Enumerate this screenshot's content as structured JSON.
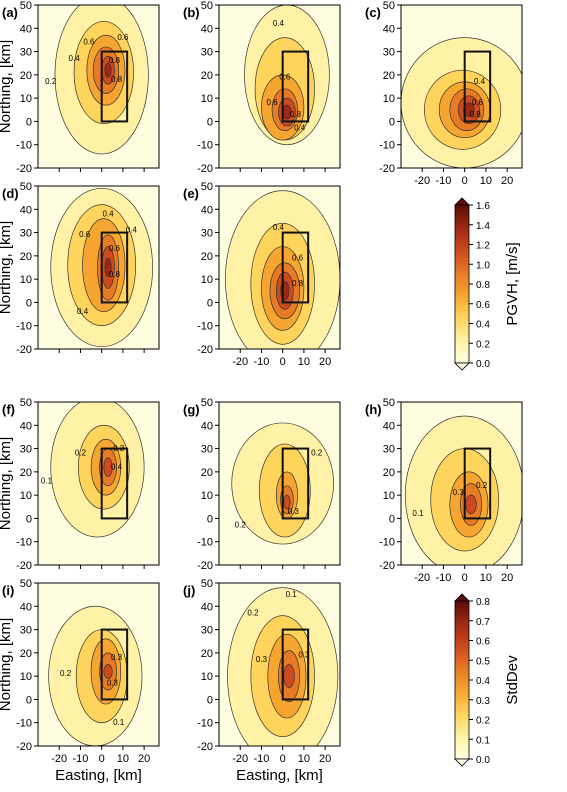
{
  "panel_letters": [
    "(a)",
    "(b)",
    "(c)",
    "(d)",
    "(e)",
    "(f)",
    "(g)",
    "(h)",
    "(i)",
    "(j)"
  ],
  "axes": {
    "xlabel": "Easting, [km]",
    "ylabel": "Northing, [km]",
    "xlim": [
      -30,
      27
    ],
    "ylim": [
      -20,
      50
    ],
    "xticks": [
      -20,
      -10,
      0,
      10,
      20
    ],
    "yticks": [
      -20,
      -10,
      0,
      10,
      20,
      30,
      40,
      50
    ]
  },
  "colorbars": [
    {
      "label": "PGVH, [m/s]",
      "ticks": [
        "0.0",
        "0.2",
        "0.4",
        "0.6",
        "0.8",
        "1.0",
        "1.2",
        "1.4",
        "1.6"
      ],
      "max": 1.6
    },
    {
      "label": "StdDev",
      "ticks": [
        "0.0",
        "0.1",
        "0.2",
        "0.3",
        "0.4",
        "0.5",
        "0.6",
        "0.7",
        "0.8"
      ],
      "max": 0.8
    }
  ],
  "colors": {
    "ramp": [
      "#fffde0",
      "#fff2a6",
      "#ffd45c",
      "#f6a531",
      "#e77a25",
      "#cc4a1d",
      "#9e2814",
      "#5a0d06"
    ]
  },
  "fault_box": {
    "x": [
      0,
      12
    ],
    "y": [
      0,
      30
    ]
  },
  "chart_data": [
    {
      "panel": "(a)",
      "type": "heatmap",
      "metric": "PGVH",
      "contour_labels": [
        "0.2",
        "0.4",
        "0.6",
        "0.6",
        "0.8",
        "0.8"
      ]
    },
    {
      "panel": "(b)",
      "type": "heatmap",
      "metric": "PGVH",
      "contour_labels": [
        "0.4",
        "0.6",
        "0.6",
        "0.8",
        "0.4"
      ]
    },
    {
      "panel": "(c)",
      "type": "heatmap",
      "metric": "PGVH",
      "contour_labels": [
        "0.4",
        "0.6",
        "0.8"
      ]
    },
    {
      "panel": "(d)",
      "type": "heatmap",
      "metric": "PGVH",
      "contour_labels": [
        "0.4",
        "0.4",
        "0.6",
        "0.6",
        "0.8",
        "0.4"
      ]
    },
    {
      "panel": "(e)",
      "type": "heatmap",
      "metric": "PGVH",
      "contour_labels": [
        "0.4",
        "0.6",
        "0.8"
      ]
    },
    {
      "panel": "(f)",
      "type": "heatmap",
      "metric": "StdDev",
      "contour_labels": [
        "0.1",
        "0.2",
        "0.3",
        "0.4"
      ]
    },
    {
      "panel": "(g)",
      "type": "heatmap",
      "metric": "StdDev",
      "contour_labels": [
        "0.2",
        "0.2",
        "0.3"
      ]
    },
    {
      "panel": "(h)",
      "type": "heatmap",
      "metric": "StdDev",
      "contour_labels": [
        "0.1",
        "0.3",
        "0.2"
      ]
    },
    {
      "panel": "(i)",
      "type": "heatmap",
      "metric": "StdDev",
      "contour_labels": [
        "0.2",
        "0.3",
        "0.3",
        "0.1"
      ]
    },
    {
      "panel": "(j)",
      "type": "heatmap",
      "metric": "StdDev",
      "contour_labels": [
        "0.1",
        "0.3",
        "0.3",
        "0.2"
      ]
    }
  ]
}
